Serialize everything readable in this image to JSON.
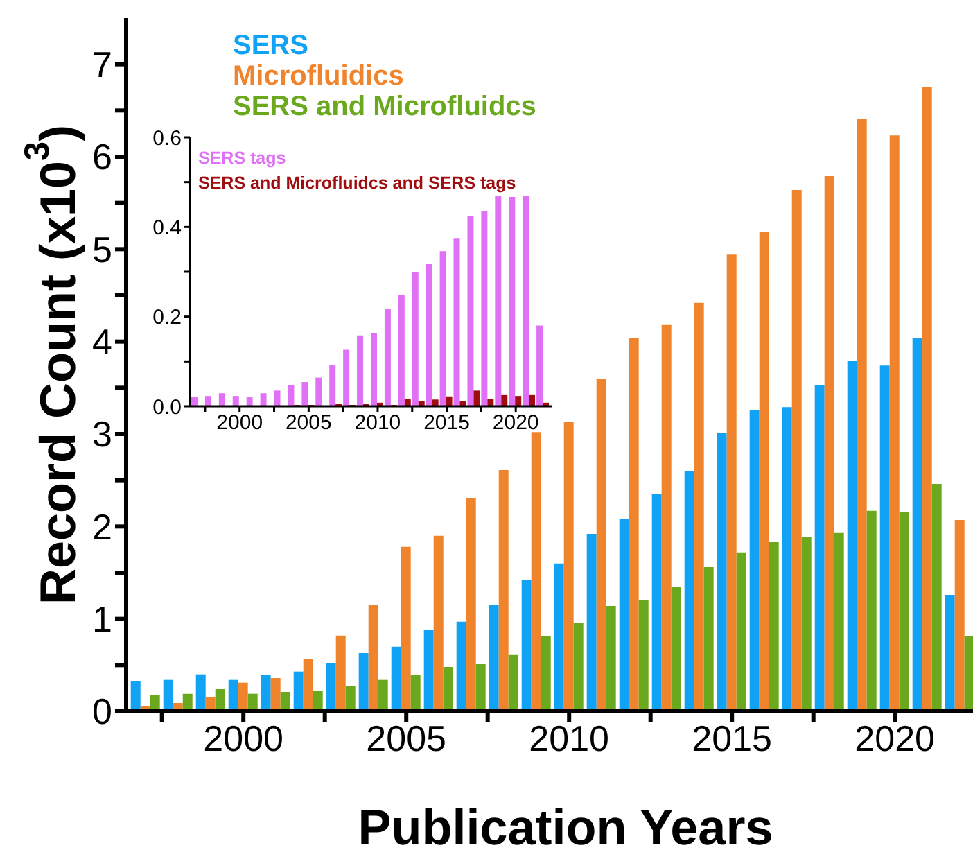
{
  "chart_data": [
    {
      "type": "bar",
      "xlabel": "Publication Years",
      "ylabel": "Record Count (x10$^{3}$)",
      "legend": "top left",
      "grid": false,
      "x": [
        1997,
        1998,
        1999,
        2000,
        2001,
        2002,
        2003,
        2004,
        2005,
        2006,
        2007,
        2008,
        2009,
        2010,
        2011,
        2012,
        2013,
        2014,
        2015,
        2016,
        2017,
        2018,
        2019,
        2020,
        2021,
        2022
      ],
      "xlim": [
        1996.4,
        2022.4
      ],
      "xticks": [
        {
          "value": 1997.5,
          "label": null
        },
        2000,
        {
          "value": 2002.5,
          "label": null
        },
        2005,
        {
          "value": 2007.5,
          "label": null
        },
        2010,
        {
          "value": 2012.5,
          "label": null
        },
        2015,
        {
          "value": 2017.5,
          "label": null
        },
        2020
      ],
      "ylim": [
        0,
        7.5
      ],
      "yticks": [
        0,
        {
          "value": 0.5,
          "label": null
        },
        1,
        {
          "value": 1.5,
          "label": null
        },
        2,
        {
          "value": 2.5,
          "label": null
        },
        3,
        {
          "value": 3.5,
          "label": null
        },
        4,
        {
          "value": 4.5,
          "label": null
        },
        5,
        {
          "value": 5.5,
          "label": null
        },
        6,
        {
          "value": 6.5,
          "label": null
        },
        7
      ],
      "series": [
        {
          "name": "SERS",
          "color": "#10a2f5",
          "values": [
            0.33,
            0.34,
            0.4,
            0.34,
            0.39,
            0.43,
            0.52,
            0.63,
            0.7,
            0.88,
            0.97,
            1.15,
            1.42,
            1.6,
            1.92,
            2.08,
            2.35,
            2.6,
            3.01,
            3.26,
            3.29,
            3.53,
            3.79,
            3.74,
            4.04,
            1.26
          ]
        },
        {
          "name": "Microfluidics",
          "color": "#f0842c",
          "values": [
            0.06,
            0.09,
            0.15,
            0.31,
            0.36,
            0.57,
            0.82,
            1.15,
            1.78,
            1.9,
            2.31,
            2.61,
            3.02,
            3.13,
            3.6,
            4.04,
            4.18,
            4.42,
            4.94,
            5.19,
            5.64,
            5.79,
            6.41,
            6.23,
            6.75,
            2.07
          ]
        },
        {
          "name": "SERS and Microfluidcs",
          "color": "#6aa81e",
          "values": [
            0.18,
            0.19,
            0.24,
            0.19,
            0.21,
            0.22,
            0.27,
            0.34,
            0.39,
            0.48,
            0.51,
            0.61,
            0.81,
            0.96,
            1.14,
            1.2,
            1.35,
            1.56,
            1.72,
            1.83,
            1.89,
            1.93,
            2.17,
            2.16,
            2.46,
            0.81
          ]
        }
      ]
    },
    {
      "type": "bar",
      "legend": "top left",
      "grid": false,
      "x": [
        1997,
        1998,
        1999,
        2000,
        2001,
        2002,
        2003,
        2004,
        2005,
        2006,
        2007,
        2008,
        2009,
        2010,
        2011,
        2012,
        2013,
        2014,
        2015,
        2016,
        2017,
        2018,
        2019,
        2020,
        2021,
        2022
      ],
      "xlim": [
        1996.4,
        2022.6
      ],
      "xticks": [
        {
          "value": 1997.5,
          "label": null
        },
        2000,
        {
          "value": 2002.5,
          "label": null
        },
        2005,
        {
          "value": 2007.5,
          "label": null
        },
        2010,
        {
          "value": 2012.5,
          "label": null
        },
        2015,
        {
          "value": 2017.5,
          "label": null
        },
        2020
      ],
      "ylim": [
        0,
        0.6
      ],
      "yticks": [
        {
          "value": 0,
          "label": "0.0"
        },
        {
          "value": 0.1,
          "label": null
        },
        0.2,
        {
          "value": 0.3,
          "label": null
        },
        0.4,
        {
          "value": 0.5,
          "label": null
        },
        0.6
      ],
      "series": [
        {
          "name": "SERS tags",
          "color": "#e070f5",
          "values": [
            0.02,
            0.023,
            0.029,
            0.023,
            0.02,
            0.029,
            0.035,
            0.048,
            0.054,
            0.064,
            0.092,
            0.126,
            0.158,
            0.164,
            0.217,
            0.248,
            0.299,
            0.317,
            0.346,
            0.374,
            0.424,
            0.436,
            0.47,
            0.467,
            0.47,
            0.18
          ]
        },
        {
          "name": "SERS and Microfluidcs and SERS tags",
          "color": "#a00d10",
          "values": [
            0,
            0,
            0,
            0,
            0,
            0,
            0,
            0.003,
            0.003,
            0.001,
            0.005,
            0.003,
            0.005,
            0.008,
            0.003,
            0.017,
            0.012,
            0.015,
            0.022,
            0.012,
            0.035,
            0.017,
            0.025,
            0.023,
            0.025,
            0.008
          ]
        }
      ]
    }
  ]
}
